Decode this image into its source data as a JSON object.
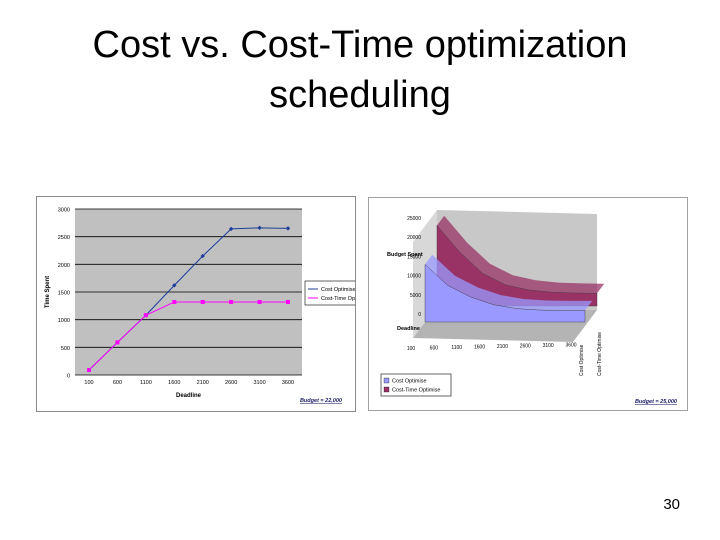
{
  "slide": {
    "title_line1": "Cost vs. Cost-Time optimization",
    "title_line2": "scheduling",
    "page_number": "30"
  },
  "chart_data": [
    {
      "type": "line",
      "xlabel": "Deadline",
      "ylabel": "Time Spent",
      "categories": [
        "100",
        "600",
        "1100",
        "1600",
        "2100",
        "2600",
        "3100",
        "3600"
      ],
      "ylim": [
        0,
        3000
      ],
      "yticks": [
        "0",
        "500",
        "1000",
        "1500",
        "2000",
        "2500",
        "3000"
      ],
      "grid": true,
      "legend_position": "right",
      "series": [
        {
          "name": "Cost Optimise",
          "color": "#1f3d99",
          "marker": "diamond",
          "values": [
            90,
            590,
            1080,
            1620,
            2150,
            2640,
            2660,
            2650
          ]
        },
        {
          "name": "Cost-Time Optimise",
          "color": "#ff00ff",
          "marker": "square",
          "values": [
            90,
            590,
            1080,
            1320,
            1320,
            1320,
            1320,
            1320
          ]
        }
      ],
      "annotation": "Budget = 22,000"
    },
    {
      "type": "area",
      "chart_style": "3d",
      "xlabel": "Deadline",
      "ylabel": "Budget Spent",
      "categories": [
        "100",
        "600",
        "1100",
        "1600",
        "2100",
        "2600",
        "3100",
        "3600"
      ],
      "ylim": [
        0,
        25000
      ],
      "yticks": [
        "0",
        "5000",
        "10000",
        "15000",
        "20000",
        "25000"
      ],
      "legend_position": "bottom-left",
      "series": [
        {
          "name": "Cost Optimise",
          "color": "#9999ff",
          "values": [
            15000,
            9500,
            6500,
            4500,
            3500,
            3100,
            3000,
            3000
          ]
        },
        {
          "name": "Cost-Time Optimise",
          "color": "#993366",
          "values": [
            21000,
            14000,
            8500,
            5500,
            4200,
            3600,
            3400,
            3300
          ]
        }
      ],
      "depth_labels": [
        "Cost Optimise",
        "Cost-Time Optimise"
      ],
      "annotation": "Budget = 25,000"
    }
  ]
}
